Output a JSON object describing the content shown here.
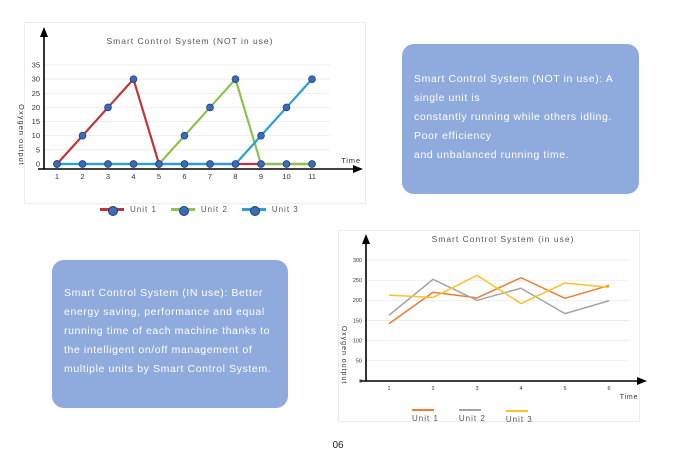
{
  "chart_data": [
    {
      "type": "line",
      "title": "Smart Control System (NOT in use)",
      "xlabel": "Time",
      "ylabel": "Oxygen output",
      "x": [
        1,
        2,
        3,
        4,
        5,
        6,
        7,
        8,
        9,
        10,
        11
      ],
      "ylim": [
        0,
        35
      ],
      "yticks": [
        0,
        5,
        10,
        15,
        20,
        25,
        30,
        35
      ],
      "grid": true,
      "markers": true,
      "legend": "bottom",
      "series": [
        {
          "name": "Unit 1",
          "color": "#c0343a",
          "values": [
            0,
            10,
            20,
            30,
            0,
            0,
            0,
            0,
            0,
            0,
            0
          ]
        },
        {
          "name": "Unit 2",
          "color": "#8dc24c",
          "values": [
            0,
            0,
            0,
            0,
            0,
            10,
            20,
            30,
            0,
            0,
            0
          ]
        },
        {
          "name": "Unit 3",
          "color": "#2a9fd6",
          "values": [
            0,
            0,
            0,
            0,
            0,
            0,
            0,
            0,
            10,
            20,
            30
          ]
        }
      ]
    },
    {
      "type": "line",
      "title": "Smart Control System (in use)",
      "xlabel": "Time",
      "ylabel": "Oxygen output",
      "x": [
        1,
        2,
        3,
        4,
        5,
        6
      ],
      "ylim": [
        0,
        300
      ],
      "yticks": [
        0,
        50,
        100,
        150,
        200,
        250,
        300
      ],
      "grid": true,
      "markers": false,
      "legend": "bottom",
      "series": [
        {
          "name": "Unit 1",
          "color": "#ed7d31",
          "values": [
            142,
            220,
            206,
            256,
            205,
            237
          ]
        },
        {
          "name": "Unit 2",
          "color": "#a5a5a5",
          "values": [
            163,
            252,
            200,
            230,
            167,
            199
          ]
        },
        {
          "name": "Unit 3",
          "color": "#fcc02d",
          "values": [
            213,
            207,
            262,
            192,
            243,
            232
          ]
        }
      ]
    }
  ],
  "notes": {
    "not_in_use": "Smart Control System (NOT in use): A single unit is\nconstantly running while others idling.\nPoor efficiency\n and unbalanced running time.",
    "in_use": "Smart Control System (IN use): Better energy saving, performance and equal running time of each machine thanks to the intelligent on/off management of multiple units by Smart Control System."
  },
  "page_number": "06"
}
